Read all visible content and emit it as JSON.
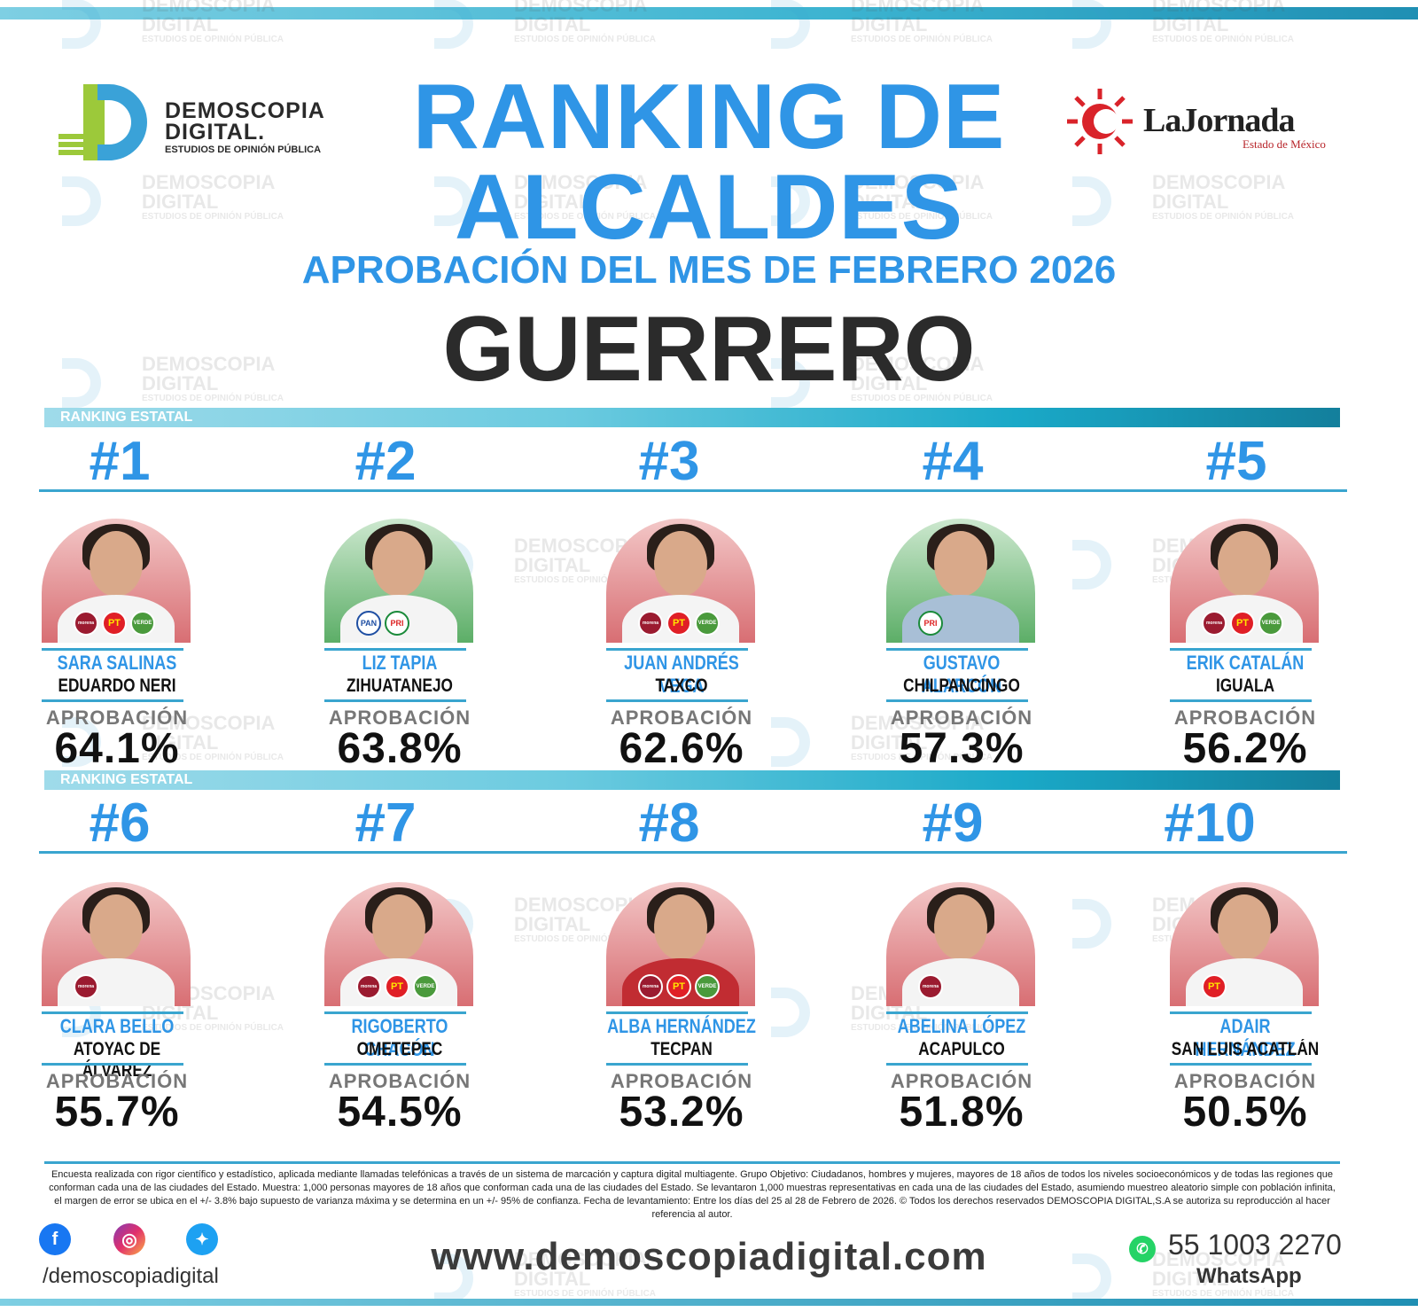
{
  "watermark": {
    "line1": "DEMOSCOPIA",
    "line2": "DIGITAL",
    "line3": "ESTUDIOS DE OPINIÓN PÚBLICA"
  },
  "logo_demoscopia": {
    "name1": "DEMOSCOPIA",
    "name2": "DIGITAL.",
    "tagline": "ESTUDIOS DE OPINIÓN PÚBLICA"
  },
  "logo_jornada": {
    "name": "LaJornada",
    "sub": "Estado de México"
  },
  "header": {
    "title_line1": "RANKING DE",
    "title_line2": "ALCALDES",
    "subtitle": "APROBACIÓN DEL MES DE FEBRERO 2026",
    "state": "GUERRERO"
  },
  "band_label": "RANKING ESTATAL",
  "approval_label": "APROBACIÓN",
  "mayors": [
    {
      "rank": "#1",
      "name": "SARA SALINAS",
      "city": "EDUARDO NERI",
      "approval": "64.1%",
      "parties": [
        "morena",
        "PT",
        "VERDE"
      ],
      "bg": "red"
    },
    {
      "rank": "#2",
      "name": "LIZ TAPIA",
      "city": "ZIHUATANEJO",
      "approval": "63.8%",
      "parties": [
        "PAN",
        "PRI"
      ],
      "bg": "green"
    },
    {
      "rank": "#3",
      "name": "JUAN ANDRÉS VEGA",
      "city": "TAXCO",
      "approval": "62.6%",
      "parties": [
        "morena",
        "PT",
        "VERDE"
      ],
      "bg": "red"
    },
    {
      "rank": "#4",
      "name": "GUSTAVO ALARCÓN",
      "city": "CHILPANCINGO",
      "approval": "57.3%",
      "parties": [
        "PRI"
      ],
      "bg": "green"
    },
    {
      "rank": "#5",
      "name": "ERIK CATALÁN",
      "city": "IGUALA",
      "approval": "56.2%",
      "parties": [
        "morena",
        "PT",
        "VERDE"
      ],
      "bg": "red"
    },
    {
      "rank": "#6",
      "name": "CLARA BELLO",
      "city": "ATOYAC DE ÁLVAREZ",
      "approval": "55.7%",
      "parties": [
        "morena"
      ],
      "bg": "red"
    },
    {
      "rank": "#7",
      "name": "RIGOBERTO CHACÓN",
      "city": "OMETEPEC",
      "approval": "54.5%",
      "parties": [
        "morena",
        "PT",
        "VERDE"
      ],
      "bg": "red"
    },
    {
      "rank": "#8",
      "name": "ALBA HERNÁNDEZ",
      "city": "TECPAN",
      "approval": "53.2%",
      "parties": [
        "morena",
        "PT",
        "VERDE"
      ],
      "bg": "red"
    },
    {
      "rank": "#9",
      "name": "ABELINA LÓPEZ",
      "city": "ACAPULCO",
      "approval": "51.8%",
      "parties": [
        "morena"
      ],
      "bg": "red"
    },
    {
      "rank": "#10",
      "name": "ADAIR HERNÁNDEZ",
      "city": "SAN LUIS ACATLÁN",
      "approval": "50.5%",
      "parties": [
        "PT"
      ],
      "bg": "red"
    }
  ],
  "disclaimer": "Encuesta realizada con rigor científico y estadístico, aplicada mediante llamadas telefónicas a través de un sistema de marcación y captura digital multiagente. Grupo Objetivo: Ciudadanos, hombres y mujeres, mayores de 18 años de todos los niveles socioeconómicos y de todas las regiones que conforman cada una de las ciudades del Estado. Muestra: 1,000 personas mayores de 18 años que conforman cada una de las ciudades del Estado. Se levantaron 1,000 muestras representativas en cada una de las ciudades del Estado, asumiendo muestreo aleatorio simple con población infinita, el margen de error se ubica en el +/- 3.8% bajo supuesto de varianza máxima y se determina en un +/- 95% de confianza. Fecha de levantamiento: Entre los días del 25 al 28 de Febrero de 2026. © Todos los derechos reservados DEMOSCOPIA DIGITAL,S.A se autoriza su reproducción al hacer referencia al autor.",
  "footer": {
    "handle": "/demoscopiadigital",
    "website": "www.demoscopiadigital.com",
    "phone": "55 1003 2270",
    "phone_label": "WhatsApp"
  },
  "colors": {
    "accent": "#2f95e6",
    "band": "#1aa9c8",
    "dark_text": "#2b2b2b"
  }
}
